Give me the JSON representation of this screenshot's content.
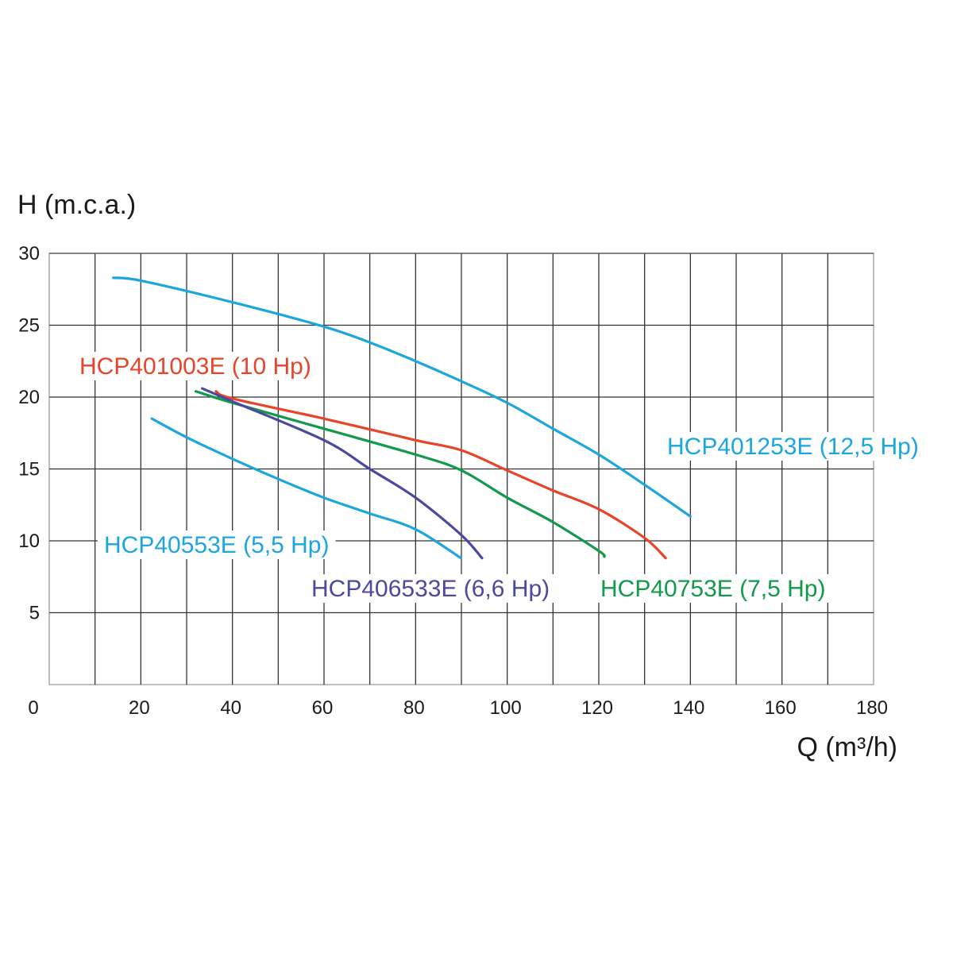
{
  "chart_data": {
    "type": "line",
    "title": "",
    "xlabel": "Q (m³/h)",
    "ylabel": "H (m.c.a.)",
    "xlim": [
      0,
      180
    ],
    "ylim": [
      0,
      30
    ],
    "x_ticks": [
      "0",
      "20",
      "40",
      "60",
      "80",
      "100",
      "120",
      "140",
      "160",
      "180"
    ],
    "y_ticks": [
      "5",
      "10",
      "15",
      "20",
      "25",
      "30"
    ],
    "grid": true,
    "grid_x_step": 10,
    "grid_y_step": 5,
    "legend": "inline labels next to curves",
    "series": [
      {
        "name": "HCP401253E (12,5 Hp)",
        "color": "#1ba6dd",
        "points": [
          [
            14,
            28.3
          ],
          [
            20,
            28.1
          ],
          [
            40,
            26.6
          ],
          [
            60,
            24.9
          ],
          [
            70,
            23.8
          ],
          [
            80,
            22.5
          ],
          [
            90,
            21.1
          ],
          [
            100,
            19.6
          ],
          [
            110,
            17.8
          ],
          [
            120,
            16.0
          ],
          [
            130,
            13.9
          ],
          [
            140,
            11.7
          ]
        ]
      },
      {
        "name": "HCP401003E (10 Hp)",
        "color": "#e8442a",
        "points": [
          [
            36.4,
            20.4
          ],
          [
            40,
            19.9
          ],
          [
            60,
            18.5
          ],
          [
            80,
            17.0
          ],
          [
            90,
            16.3
          ],
          [
            100,
            14.9
          ],
          [
            110,
            13.5
          ],
          [
            120,
            12.2
          ],
          [
            130,
            10.2
          ],
          [
            134.6,
            8.8
          ]
        ]
      },
      {
        "name": "HCP40753E (7,5 Hp)",
        "color": "#119a4a",
        "points": [
          [
            32,
            20.4
          ],
          [
            40,
            19.6
          ],
          [
            60,
            17.8
          ],
          [
            80,
            16.0
          ],
          [
            90,
            14.9
          ],
          [
            100,
            13.0
          ],
          [
            110,
            11.3
          ],
          [
            120,
            9.3
          ],
          [
            121.2,
            8.9
          ]
        ]
      },
      {
        "name": "HCP406533E (6,6 Hp)",
        "color": "#4a4a9c",
        "points": [
          [
            33.4,
            20.6
          ],
          [
            40,
            19.7
          ],
          [
            60,
            17.0
          ],
          [
            70,
            15.0
          ],
          [
            80,
            13.0
          ],
          [
            90,
            10.4
          ],
          [
            94.5,
            8.8
          ]
        ]
      },
      {
        "name": "HCP40553E (5,5 Hp)",
        "color": "#1ba6dd",
        "points": [
          [
            22.4,
            18.5
          ],
          [
            30,
            17.2
          ],
          [
            40,
            15.7
          ],
          [
            50,
            14.3
          ],
          [
            60,
            13.0
          ],
          [
            70,
            11.9
          ],
          [
            80,
            10.8
          ],
          [
            89.9,
            8.8
          ]
        ]
      }
    ]
  }
}
